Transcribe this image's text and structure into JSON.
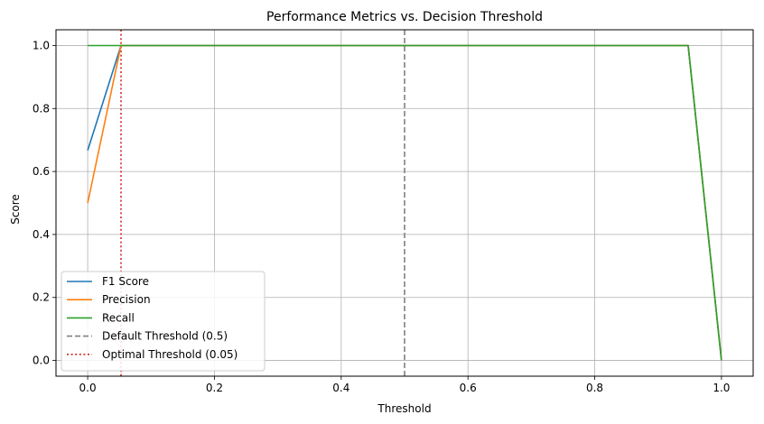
{
  "chart_data": {
    "type": "line",
    "title": "Performance Metrics vs. Decision Threshold",
    "xlabel": "Threshold",
    "ylabel": "Score",
    "xlim": [
      -0.05,
      1.05
    ],
    "ylim": [
      -0.05,
      1.05
    ],
    "xticks": [
      0.0,
      0.2,
      0.4,
      0.6,
      0.8,
      1.0
    ],
    "xtick_labels": [
      "0.0",
      "0.2",
      "0.4",
      "0.6",
      "0.8",
      "1.0"
    ],
    "yticks": [
      0.0,
      0.2,
      0.4,
      0.6,
      0.8,
      1.0
    ],
    "ytick_labels": [
      "0.0",
      "0.2",
      "0.4",
      "0.6",
      "0.8",
      "1.0"
    ],
    "grid": true,
    "legend_position": "lower-left",
    "series": [
      {
        "name": "F1 Score",
        "color": "#1f77b4",
        "x": [
          0.0,
          0.0526,
          0.9474,
          1.0
        ],
        "y": [
          0.667,
          1.0,
          1.0,
          0.0
        ]
      },
      {
        "name": "Precision",
        "color": "#ff7f0e",
        "x": [
          0.0,
          0.0526,
          0.9474,
          1.0
        ],
        "y": [
          0.5,
          1.0,
          1.0,
          0.0
        ]
      },
      {
        "name": "Recall",
        "color": "#2ca02c",
        "x": [
          0.0,
          0.0526,
          0.9474,
          1.0
        ],
        "y": [
          1.0,
          1.0,
          1.0,
          0.0
        ]
      }
    ],
    "reference_lines": [
      {
        "name": "Default Threshold (0.5)",
        "x": 0.5,
        "color": "#808080",
        "style": "dashed"
      },
      {
        "name": "Optimal Threshold (0.05)",
        "x": 0.0526,
        "color": "#d62728",
        "style": "dotted"
      }
    ]
  }
}
